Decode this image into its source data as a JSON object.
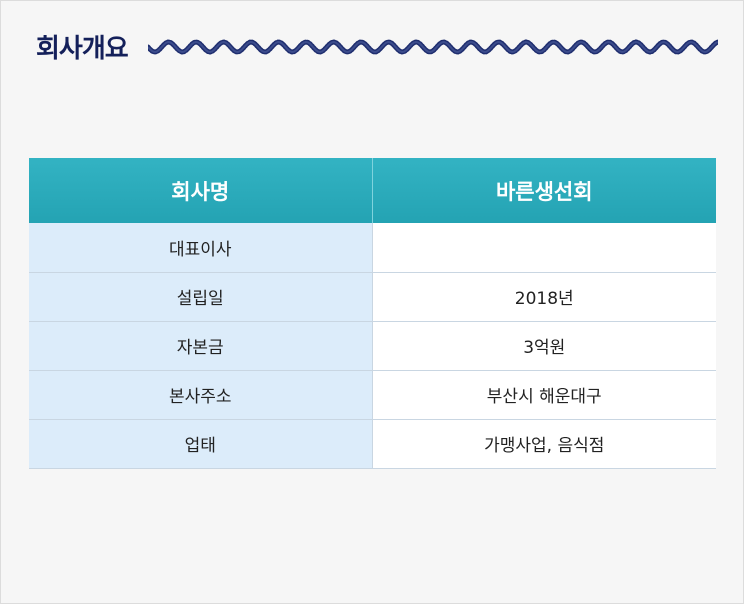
{
  "section": {
    "title": "회사개요"
  },
  "colors": {
    "header": "#2aa9b9",
    "label_bg": "#dcecfa",
    "title": "#14205a",
    "wave": "#1e2d6e"
  },
  "table": {
    "headers": [
      "회사명",
      "바른생선회"
    ],
    "rows": [
      {
        "label": "대표이사",
        "value": ""
      },
      {
        "label": "설립일",
        "value": "2018년"
      },
      {
        "label": "자본금",
        "value": "3억원"
      },
      {
        "label": "본사주소",
        "value": "부산시 해운대구"
      },
      {
        "label": "업태",
        "value": "가맹사업, 음식점"
      }
    ]
  }
}
